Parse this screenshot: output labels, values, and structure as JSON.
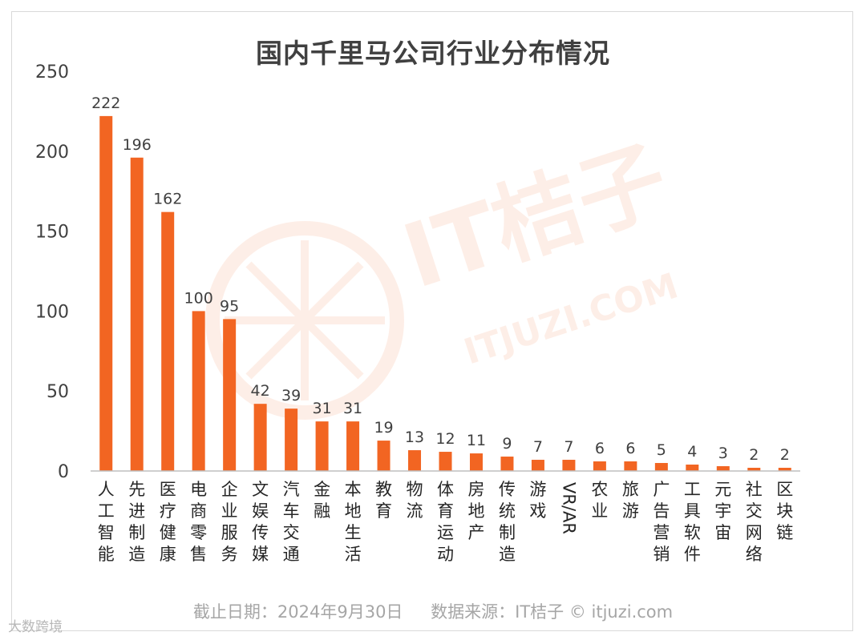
{
  "chart_data": {
    "type": "bar",
    "title": "国内千里马公司行业分布情况",
    "categories": [
      "人工智能",
      "先进制造",
      "医疗健康",
      "电商零售",
      "企业服务",
      "文娱传媒",
      "汽车交通",
      "金融",
      "本地生活",
      "教育",
      "物流",
      "体育运动",
      "房地产",
      "传统制造",
      "游戏",
      "VR/AR",
      "农业",
      "旅游",
      "广告营销",
      "工具软件",
      "元宇宙",
      "社交网络",
      "区块链"
    ],
    "values": [
      222,
      196,
      162,
      100,
      95,
      42,
      39,
      31,
      31,
      19,
      13,
      12,
      11,
      9,
      7,
      7,
      6,
      6,
      5,
      4,
      3,
      2,
      2
    ],
    "ylim": [
      0,
      250
    ],
    "yticks": [
      0,
      50,
      100,
      150,
      200,
      250
    ],
    "grid": false,
    "bar_color": "#f26522"
  },
  "footer": {
    "date_note": "截止日期：2024年9月30日",
    "source_note": "数据来源：IT桔子 © itjuzi.com"
  },
  "watermark": {
    "brand": "IT桔子",
    "url": "ITJUZI.COM",
    "corner_mark": "大数跨境"
  },
  "colors": {
    "bar": "#f26522",
    "watermark": "#f26522"
  }
}
